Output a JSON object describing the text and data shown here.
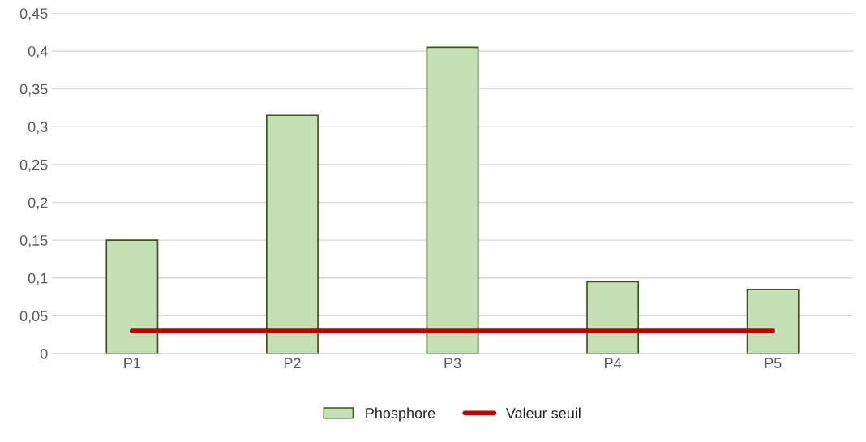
{
  "chart_data": {
    "type": "bar",
    "categories": [
      "P1",
      "P2",
      "P3",
      "P4",
      "P5"
    ],
    "series": [
      {
        "name": "Phosphore",
        "color": "#c5e0b4",
        "values": [
          0.15,
          0.315,
          0.405,
          0.095,
          0.085
        ]
      },
      {
        "name": "Valeur seuil",
        "type": "line",
        "color": "#c00000",
        "values": [
          0.03,
          0.03,
          0.03,
          0.03,
          0.03
        ]
      }
    ],
    "ylim": [
      0,
      0.45
    ],
    "yticks": [
      {
        "value": 0,
        "label": "0"
      },
      {
        "value": 0.05,
        "label": "0,05"
      },
      {
        "value": 0.1,
        "label": "0,1"
      },
      {
        "value": 0.15,
        "label": "0,15"
      },
      {
        "value": 0.2,
        "label": "0,2"
      },
      {
        "value": 0.25,
        "label": "0,25"
      },
      {
        "value": 0.3,
        "label": "0,3"
      },
      {
        "value": 0.35,
        "label": "0,35"
      },
      {
        "value": 0.4,
        "label": "0,4"
      },
      {
        "value": 0.45,
        "label": "0,45"
      }
    ],
    "grid": "y",
    "legend": "bottom",
    "marker": "none",
    "line_style": "solid"
  }
}
